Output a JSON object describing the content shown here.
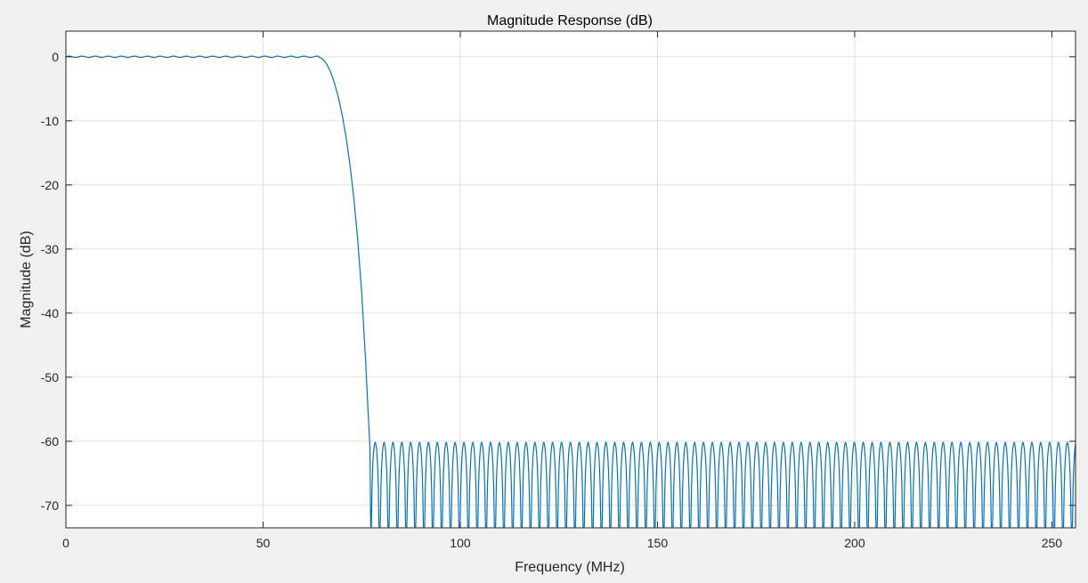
{
  "chart_data": {
    "type": "line",
    "title": "Magnitude Response (dB)",
    "xlabel": "Frequency (MHz)",
    "ylabel": "Magnitude (dB)",
    "xlim": [
      0,
      256
    ],
    "ylim": [
      -73.5,
      4
    ],
    "xticks": [
      0,
      50,
      100,
      150,
      200,
      250
    ],
    "yticks": [
      0,
      -10,
      -20,
      -30,
      -40,
      -50,
      -60,
      -70
    ],
    "grid": true,
    "legend": "none",
    "series_color": "#0072bd",
    "background_color": "#f0f0f0",
    "series": [
      {
        "passband_edge": 64,
        "transition_points": [
          [
            64,
            0
          ],
          [
            65,
            -0.3
          ],
          [
            66,
            -1
          ],
          [
            67,
            -2.2
          ],
          [
            68,
            -3.9
          ],
          [
            69,
            -6.1
          ],
          [
            70,
            -8.9
          ],
          [
            71,
            -12.4
          ],
          [
            72,
            -16.7
          ],
          [
            73,
            -22
          ],
          [
            74,
            -28.6
          ],
          [
            75,
            -36.8
          ],
          [
            76,
            -47.5
          ],
          [
            76.6,
            -55
          ],
          [
            77.1,
            -61
          ],
          [
            77.3,
            -73.5
          ]
        ],
        "passband_ripple_db": 0.1,
        "stopband_peak_db": -60.2,
        "stopband_lobe_width_mhz": 2.25,
        "stopband_start": 77.3
      }
    ]
  }
}
